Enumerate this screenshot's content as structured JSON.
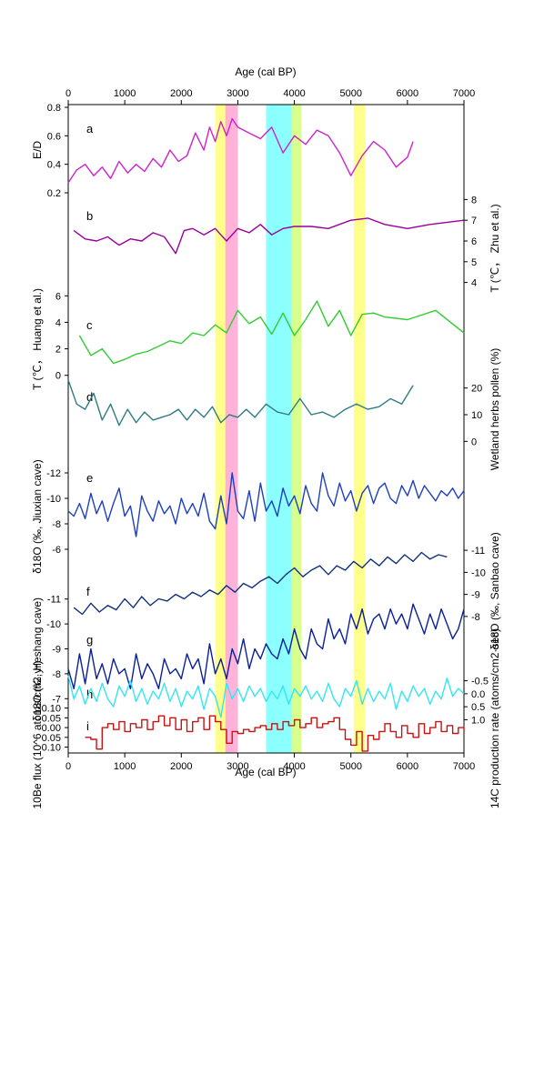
{
  "chart_data": {
    "type": "line",
    "x_axis": {
      "label": "Age (cal BP)",
      "range": [
        0,
        7000
      ],
      "ticks": [
        "0",
        "1000",
        "2000",
        "3000",
        "4000",
        "5000",
        "6000",
        "7000"
      ]
    },
    "highlight_bands": [
      {
        "x": [
          2600,
          2800
        ],
        "color": "#ffff66"
      },
      {
        "x": [
          2780,
          3000
        ],
        "color": "#ff99cc"
      },
      {
        "x": [
          3500,
          3950
        ],
        "color": "#66ffff"
      },
      {
        "x": [
          3950,
          4120
        ],
        "color": "#ccff66"
      },
      {
        "x": [
          5050,
          5250
        ],
        "color": "#ffff66"
      }
    ],
    "panels": [
      {
        "letter": "a",
        "color": "#cc22cc",
        "label": "E/D",
        "side": "left",
        "ticks": [
          "0.2",
          "0.4",
          "0.6",
          "0.8"
        ],
        "range": [
          0.2,
          0.8
        ],
        "x": [
          0,
          150,
          300,
          450,
          600,
          750,
          900,
          1050,
          1200,
          1350,
          1500,
          1650,
          1800,
          1950,
          2100,
          2250,
          2400,
          2500,
          2600,
          2700,
          2800,
          2900,
          3000,
          3200,
          3400,
          3600,
          3800,
          4000,
          4200,
          4400,
          4600,
          4800,
          5000,
          5200,
          5400,
          5600,
          5800,
          6000,
          6100
        ],
        "y": [
          0.27,
          0.36,
          0.4,
          0.32,
          0.38,
          0.3,
          0.42,
          0.34,
          0.4,
          0.35,
          0.44,
          0.38,
          0.5,
          0.42,
          0.46,
          0.62,
          0.5,
          0.66,
          0.56,
          0.7,
          0.6,
          0.72,
          0.66,
          0.62,
          0.58,
          0.66,
          0.48,
          0.6,
          0.54,
          0.64,
          0.6,
          0.48,
          0.32,
          0.46,
          0.56,
          0.5,
          0.38,
          0.45,
          0.56
        ]
      },
      {
        "letter": "b",
        "color": "#990099",
        "label": "T (℃， Zhu et al.)",
        "side": "right",
        "ticks": [
          "4",
          "5",
          "6",
          "7",
          "8"
        ],
        "range": [
          3.5,
          8.5
        ],
        "x": [
          100,
          300,
          500,
          700,
          900,
          1100,
          1300,
          1500,
          1700,
          1900,
          2050,
          2200,
          2400,
          2600,
          2700,
          2800,
          3000,
          3200,
          3400,
          3600,
          3800,
          4000,
          4300,
          4600,
          5000,
          5300,
          5600,
          6000,
          6400,
          7000
        ],
        "y": [
          6.5,
          6.1,
          6.0,
          6.2,
          5.8,
          6.1,
          6.0,
          6.4,
          6.2,
          5.4,
          6.5,
          6.6,
          6.3,
          6.6,
          6.3,
          6.0,
          6.6,
          6.4,
          6.8,
          6.3,
          6.6,
          6.7,
          6.7,
          6.6,
          7.0,
          7.1,
          6.8,
          6.6,
          6.8,
          7.0
        ]
      },
      {
        "letter": "c",
        "color": "#33cc33",
        "label": "T (℃， Huang et al.)",
        "side": "left",
        "ticks": [
          "0",
          "2",
          "4",
          "6"
        ],
        "range": [
          -0.5,
          6.5
        ],
        "x": [
          200,
          400,
          600,
          800,
          1000,
          1200,
          1400,
          1600,
          1800,
          2000,
          2200,
          2400,
          2600,
          2800,
          3000,
          3200,
          3400,
          3600,
          3800,
          4000,
          4200,
          4400,
          4600,
          4800,
          5000,
          5200,
          5400,
          5600,
          6000,
          6500,
          7000
        ],
        "y": [
          3.0,
          1.5,
          2.0,
          0.9,
          1.2,
          1.6,
          1.8,
          2.2,
          2.6,
          2.4,
          3.2,
          3.0,
          3.8,
          3.2,
          4.9,
          3.9,
          4.4,
          3.1,
          4.7,
          3.0,
          4.2,
          5.6,
          3.7,
          4.9,
          3.0,
          4.6,
          4.7,
          4.4,
          4.2,
          4.9,
          3.2
        ]
      },
      {
        "letter": "d",
        "color": "#2e7b82",
        "label": "Wetland herbs pollen (%)",
        "side": "right",
        "ticks": [
          "0",
          "10",
          "20"
        ],
        "range": [
          -5,
          25
        ],
        "x": [
          0,
          150,
          300,
          450,
          600,
          750,
          900,
          1050,
          1200,
          1350,
          1500,
          1650,
          1800,
          1950,
          2100,
          2250,
          2400,
          2550,
          2700,
          2850,
          3000,
          3150,
          3300,
          3500,
          3700,
          3900,
          4100,
          4300,
          4500,
          4700,
          4900,
          5100,
          5300,
          5500,
          5700,
          5900,
          6100
        ],
        "y": [
          23,
          14,
          12,
          18,
          8,
          14,
          6,
          12,
          7,
          11,
          8,
          9,
          10,
          12,
          8,
          12,
          9,
          13,
          7,
          10,
          9,
          12,
          9,
          14,
          11,
          10,
          16,
          10,
          11,
          9,
          12,
          14,
          12,
          13,
          16,
          14,
          21
        ]
      },
      {
        "letter": "e",
        "color": "#1f3fbf",
        "label": "δ18O (‰, Jiuxian cave)",
        "side": "left",
        "ticks": [
          "-6",
          "-8",
          "-10",
          "-12"
        ],
        "range": [
          -5,
          -13
        ],
        "x": [
          0,
          100,
          200,
          300,
          400,
          500,
          600,
          700,
          800,
          900,
          1000,
          1100,
          1200,
          1300,
          1400,
          1500,
          1600,
          1700,
          1800,
          1900,
          2000,
          2100,
          2200,
          2300,
          2400,
          2500,
          2600,
          2700,
          2800,
          2900,
          3000,
          3100,
          3200,
          3300,
          3400,
          3500,
          3600,
          3700,
          3800,
          3900,
          4000,
          4100,
          4200,
          4300,
          4400,
          4500,
          4600,
          4700,
          4800,
          4900,
          5000,
          5100,
          5200,
          5300,
          5400,
          5500,
          5600,
          5700,
          5800,
          5900,
          6000,
          6100,
          6200,
          6300,
          6400,
          6500,
          6600,
          6700,
          6800,
          6900,
          7000
        ],
        "y": [
          -9.0,
          -8.6,
          -9.6,
          -8.4,
          -10.4,
          -8.8,
          -9.8,
          -8.2,
          -9.6,
          -10.8,
          -8.6,
          -9.4,
          -7.0,
          -10.2,
          -9.0,
          -8.2,
          -9.8,
          -8.8,
          -9.4,
          -8.0,
          -10.0,
          -8.8,
          -9.6,
          -8.6,
          -10.4,
          -8.2,
          -7.6,
          -10.2,
          -8.0,
          -12.0,
          -9.0,
          -8.4,
          -10.6,
          -8.2,
          -11.2,
          -9.0,
          -9.8,
          -8.6,
          -10.8,
          -9.4,
          -10.2,
          -8.8,
          -11.0,
          -9.6,
          -9.0,
          -12.0,
          -10.2,
          -9.4,
          -11.2,
          -9.8,
          -10.6,
          -9.0,
          -10.4,
          -11.0,
          -9.6,
          -10.8,
          -11.2,
          -10.0,
          -9.6,
          -11.0,
          -10.2,
          -11.4,
          -10.0,
          -11.0,
          -10.4,
          -9.8,
          -10.6,
          -10.2,
          -10.8,
          -10.0,
          -10.6
        ]
      },
      {
        "letter": "f",
        "color": "#10307a",
        "label": "δ18O (‰, Sanbao cave)",
        "side": "right",
        "ticks": [
          "-8",
          "-9",
          "-10",
          "-11"
        ],
        "range": [
          -7.5,
          -11.5
        ],
        "x": [
          100,
          250,
          400,
          550,
          700,
          850,
          1000,
          1150,
          1300,
          1450,
          1600,
          1750,
          1900,
          2050,
          2200,
          2350,
          2500,
          2650,
          2800,
          2950,
          3100,
          3250,
          3400,
          3550,
          3700,
          3850,
          4000,
          4150,
          4300,
          4450,
          4600,
          4750,
          4900,
          5050,
          5200,
          5350,
          5500,
          5650,
          5800,
          5950,
          6100,
          6250,
          6400,
          6550,
          6700
        ],
        "y": [
          -8.4,
          -8.1,
          -8.6,
          -8.2,
          -8.5,
          -8.3,
          -8.8,
          -8.4,
          -8.9,
          -8.5,
          -8.8,
          -8.7,
          -9.0,
          -8.8,
          -9.1,
          -8.9,
          -9.2,
          -9.0,
          -9.4,
          -9.1,
          -9.5,
          -9.3,
          -9.6,
          -9.8,
          -9.5,
          -9.9,
          -10.2,
          -9.8,
          -10.1,
          -10.3,
          -9.9,
          -10.3,
          -10.1,
          -10.5,
          -10.2,
          -10.6,
          -10.3,
          -10.7,
          -10.4,
          -10.8,
          -10.5,
          -10.9,
          -10.6,
          -10.8,
          -10.7
        ]
      },
      {
        "letter": "g",
        "color": "#0a1f99",
        "label": "δ18O (‰, Heshang cave)",
        "side": "left",
        "ticks": [
          "-7",
          "-8",
          "-9",
          "-10",
          "-11"
        ],
        "range": [
          -6.5,
          -11.5
        ],
        "x": [
          0,
          100,
          200,
          300,
          400,
          500,
          600,
          700,
          800,
          900,
          1000,
          1100,
          1200,
          1300,
          1400,
          1500,
          1600,
          1700,
          1800,
          1900,
          2000,
          2100,
          2200,
          2300,
          2400,
          2500,
          2600,
          2700,
          2800,
          2900,
          3000,
          3100,
          3200,
          3300,
          3400,
          3500,
          3600,
          3700,
          3800,
          3900,
          4000,
          4100,
          4200,
          4300,
          4400,
          4500,
          4600,
          4700,
          4800,
          4900,
          5000,
          5100,
          5200,
          5300,
          5400,
          5500,
          5600,
          5700,
          5800,
          5900,
          6000,
          6100,
          6200,
          6300,
          6400,
          6500,
          6600,
          6700,
          6800,
          6900,
          7000
        ],
        "y": [
          -8.2,
          -7.4,
          -8.8,
          -7.6,
          -9.0,
          -7.8,
          -8.4,
          -7.6,
          -8.6,
          -8.0,
          -8.2,
          -7.4,
          -8.8,
          -7.8,
          -8.4,
          -8.0,
          -7.4,
          -8.6,
          -8.0,
          -8.2,
          -7.8,
          -8.8,
          -8.2,
          -8.6,
          -7.6,
          -9.2,
          -8.0,
          -8.6,
          -7.8,
          -9.0,
          -8.4,
          -9.4,
          -8.2,
          -9.0,
          -8.6,
          -9.2,
          -8.8,
          -8.6,
          -9.4,
          -8.8,
          -9.8,
          -9.0,
          -8.6,
          -9.8,
          -9.2,
          -9.0,
          -10.2,
          -9.4,
          -9.8,
          -9.2,
          -10.4,
          -9.8,
          -10.6,
          -9.6,
          -10.2,
          -10.4,
          -9.8,
          -10.6,
          -10.0,
          -10.4,
          -9.8,
          -10.8,
          -10.2,
          -9.6,
          -10.4,
          -9.8,
          -10.6,
          -10.0,
          -9.4,
          -9.8,
          -10.6
        ]
      },
      {
        "letter": "h",
        "color": "#33e6f2",
        "label": "14C production rate (atoms/cm2·sec)",
        "side": "right",
        "ticks": [
          "-0.5",
          "0.0",
          "0.5",
          "1.0"
        ],
        "range": [
          1.3,
          -0.8
        ],
        "x": [
          0,
          100,
          200,
          300,
          400,
          500,
          600,
          700,
          800,
          900,
          1000,
          1100,
          1200,
          1300,
          1400,
          1500,
          1600,
          1700,
          1800,
          1900,
          2000,
          2100,
          2200,
          2300,
          2400,
          2500,
          2600,
          2700,
          2800,
          2900,
          3000,
          3100,
          3200,
          3300,
          3400,
          3500,
          3600,
          3700,
          3800,
          3900,
          4000,
          4100,
          4200,
          4300,
          4400,
          4500,
          4600,
          4700,
          4800,
          4900,
          5000,
          5100,
          5200,
          5300,
          5400,
          5500,
          5600,
          5700,
          5800,
          5900,
          6000,
          6100,
          6200,
          6300,
          6400,
          6500,
          6600,
          6700,
          6800,
          6900,
          7000
        ],
        "y": [
          -0.7,
          0.2,
          -0.3,
          0.4,
          -0.2,
          0.3,
          -0.4,
          0.2,
          0.5,
          -0.3,
          0.1,
          -0.5,
          0.3,
          -0.2,
          0.4,
          -0.1,
          0.2,
          -0.4,
          0.3,
          -0.2,
          0.5,
          -0.1,
          0.2,
          -0.3,
          0.6,
          -0.2,
          0.1,
          0.9,
          -0.4,
          0.2,
          -0.2,
          0.3,
          -0.3,
          0.1,
          -0.2,
          0.3,
          -0.1,
          0.2,
          -0.3,
          0.4,
          -0.2,
          0.1,
          -0.3,
          0.2,
          -0.1,
          0.3,
          -0.4,
          0.2,
          0.5,
          -0.2,
          0.1,
          -0.5,
          0.4,
          -0.2,
          0.3,
          -0.1,
          0.2,
          -0.4,
          0.6,
          -0.1,
          0.3,
          -0.3,
          0.1,
          -0.2,
          0.4,
          -0.1,
          0.2,
          -0.6,
          0.1,
          -0.2,
          0.0
        ]
      },
      {
        "letter": "i",
        "color": "#cc1111",
        "label": "10Be flux (10^6 atoms/cm2·yr)",
        "side": "left",
        "ticks": [
          "0.10",
          "0.05",
          "0.00",
          "-0.05",
          "-0.10"
        ],
        "range": [
          0.13,
          -0.14
        ],
        "step": true,
        "x": [
          300,
          400,
          500,
          600,
          700,
          800,
          900,
          1000,
          1100,
          1200,
          1300,
          1400,
          1500,
          1600,
          1700,
          1800,
          1900,
          2000,
          2100,
          2200,
          2300,
          2400,
          2500,
          2600,
          2700,
          2800,
          2900,
          3000,
          3100,
          3200,
          3300,
          3400,
          3500,
          3600,
          3700,
          3800,
          3900,
          4000,
          4100,
          4200,
          4300,
          4400,
          4500,
          4600,
          4700,
          4800,
          4900,
          5000,
          5100,
          5200,
          5300,
          5400,
          5500,
          5600,
          5700,
          5800,
          5900,
          6000,
          6100,
          6200,
          6300,
          6400,
          6500,
          6600,
          6700,
          6800,
          6900,
          7000
        ],
        "y": [
          0.05,
          0.06,
          0.11,
          0.0,
          -0.02,
          0.01,
          -0.03,
          0.02,
          -0.02,
          0.0,
          -0.04,
          0.01,
          -0.03,
          -0.06,
          -0.01,
          -0.05,
          0.01,
          -0.04,
          0.02,
          -0.03,
          -0.05,
          0.01,
          -0.06,
          -0.03,
          0.01,
          0.08,
          0.02,
          0.03,
          0.01,
          0.02,
          0.0,
          -0.01,
          0.01,
          -0.02,
          0.01,
          -0.03,
          -0.01,
          -0.04,
          0.0,
          -0.02,
          -0.05,
          0.0,
          -0.02,
          -0.03,
          -0.05,
          0.01,
          0.06,
          0.09,
          0.02,
          0.12,
          0.04,
          0.06,
          0.02,
          -0.02,
          0.02,
          0.05,
          -0.01,
          0.03,
          0.05,
          -0.02,
          0.03,
          0.0,
          -0.03,
          0.02,
          -0.01,
          0.03,
          0.0,
          0.02
        ]
      }
    ]
  }
}
